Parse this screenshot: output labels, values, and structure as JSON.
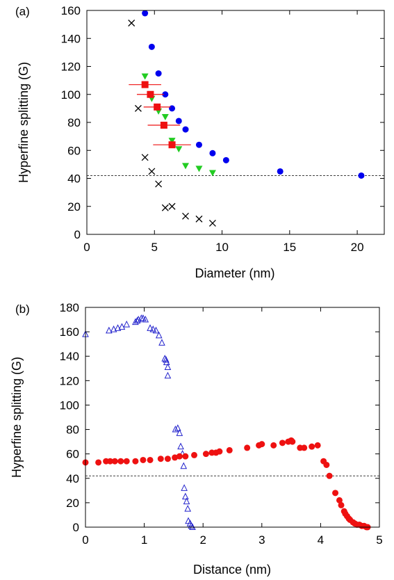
{
  "chart_data": [
    {
      "type": "scatter",
      "panel_label": "(a)",
      "xlabel": "Diameter (nm)",
      "ylabel": "Hyperfine splitting (G)",
      "xlim": [
        0,
        22
      ],
      "ylim": [
        0,
        160
      ],
      "xticks": [
        0,
        5,
        10,
        15,
        20
      ],
      "yticks": [
        0,
        20,
        40,
        60,
        80,
        100,
        120,
        140,
        160
      ],
      "grid": false,
      "reference_line_y": 42,
      "series": [
        {
          "marker": "circle",
          "color": "#0000ee",
          "x": [
            4.3,
            4.8,
            5.3,
            5.8,
            6.3,
            6.8,
            7.3,
            8.3,
            9.3,
            10.3,
            14.3,
            20.3
          ],
          "y": [
            158,
            134,
            115,
            100,
            90,
            81,
            75,
            64,
            58,
            53,
            45,
            42
          ]
        },
        {
          "marker": "triangle-down",
          "color": "#22cc22",
          "x": [
            4.3,
            4.8,
            5.3,
            5.8,
            6.3,
            6.8,
            7.3,
            8.3,
            9.3
          ],
          "y": [
            113,
            97,
            88,
            84,
            67,
            61,
            49,
            47,
            44
          ]
        },
        {
          "marker": "square",
          "color": "#ee1111",
          "x": [
            4.3,
            4.7,
            5.2,
            5.7,
            6.3
          ],
          "y": [
            107,
            100,
            91,
            78,
            64
          ],
          "xerr": [
            1.2,
            1.0,
            1.0,
            1.2,
            1.4
          ]
        },
        {
          "marker": "cross",
          "color": "#000000",
          "x": [
            3.3,
            3.8,
            4.3,
            4.8,
            5.3,
            5.8,
            6.3,
            7.3,
            8.3,
            9.3
          ],
          "y": [
            151,
            90,
            55,
            45,
            36,
            19,
            20,
            13,
            11,
            8
          ]
        }
      ]
    },
    {
      "type": "scatter",
      "panel_label": "(b)",
      "xlabel": "Distance (nm)",
      "ylabel": "Hyperfine splitting (G)",
      "xlim": [
        0,
        5
      ],
      "ylim": [
        0,
        180
      ],
      "xticks": [
        0,
        1,
        2,
        3,
        4,
        5
      ],
      "yticks": [
        0,
        20,
        40,
        60,
        80,
        100,
        120,
        140,
        160,
        180
      ],
      "grid": false,
      "reference_line_y": 42,
      "series": [
        {
          "marker": "triangle-open",
          "color": "#2222cc",
          "x": [
            0.0,
            0.4,
            0.48,
            0.55,
            0.62,
            0.7,
            0.85,
            0.88,
            0.9,
            0.95,
            0.98,
            1.02,
            1.1,
            1.15,
            1.2,
            1.25,
            1.3,
            1.35,
            1.37,
            1.38,
            1.4,
            1.4,
            1.53,
            1.57,
            1.6,
            1.62,
            1.65,
            1.67,
            1.68,
            1.7,
            1.72,
            1.74,
            1.75,
            1.78,
            1.8,
            1.82
          ],
          "y": [
            158,
            161,
            162,
            163,
            164,
            166,
            168,
            169,
            170,
            171,
            171,
            170,
            163,
            162,
            161,
            157,
            151,
            138,
            137,
            135,
            131,
            124,
            80,
            81,
            77,
            66,
            60,
            50,
            32,
            25,
            21,
            15,
            5,
            3,
            1,
            0
          ]
        },
        {
          "marker": "circle",
          "color": "#ee1111",
          "x": [
            0.0,
            0.22,
            0.35,
            0.42,
            0.5,
            0.6,
            0.7,
            0.85,
            0.98,
            1.1,
            1.28,
            1.4,
            1.52,
            1.6,
            1.7,
            1.85,
            2.05,
            2.15,
            2.22,
            2.28,
            2.45,
            2.75,
            2.95,
            3.0,
            3.2,
            3.35,
            3.45,
            3.5,
            3.52,
            3.65,
            3.72,
            3.85,
            3.95,
            4.05,
            4.1,
            4.15,
            4.25,
            4.32,
            4.35,
            4.4,
            4.42,
            4.45,
            4.48,
            4.5,
            4.55,
            4.58,
            4.62,
            4.66,
            4.7,
            4.74,
            4.78,
            4.8
          ],
          "y": [
            53,
            53,
            54,
            54,
            54,
            54,
            54,
            54,
            55,
            55,
            56,
            56,
            57,
            58,
            58,
            59,
            60,
            61,
            61,
            62,
            63,
            65,
            67,
            68,
            67,
            69,
            70,
            71,
            70,
            65,
            65,
            66,
            67,
            54,
            51,
            42,
            28,
            22,
            18,
            13,
            11,
            9,
            7,
            6,
            4,
            3,
            2,
            2,
            1,
            1,
            0,
            0
          ]
        }
      ]
    }
  ]
}
